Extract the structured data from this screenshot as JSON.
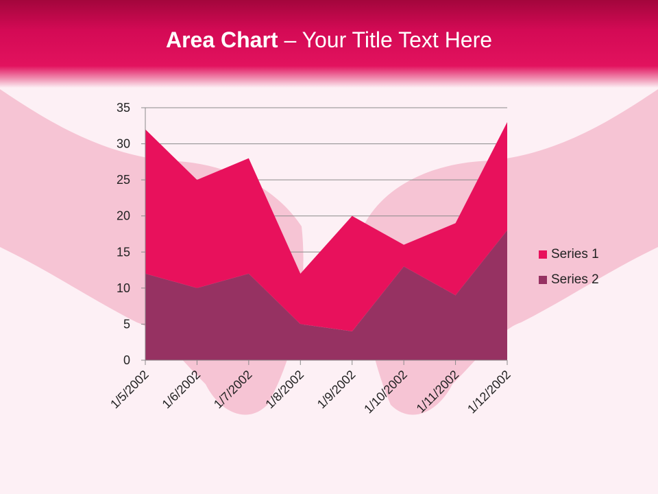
{
  "slide": {
    "title_bold": "Area Chart",
    "title_rest": " – Your Title Text Here"
  },
  "colors": {
    "series1": "#e8115c",
    "series2": "#963262",
    "wing": "#f0a0b8"
  },
  "chart_data": {
    "type": "area",
    "stacked": true,
    "categories": [
      "1/5/2002",
      "1/6/2002",
      "1/7/2002",
      "1/8/2002",
      "1/9/2002",
      "1/10/2002",
      "1/11/2002",
      "1/12/2002"
    ],
    "series": [
      {
        "name": "Series 1",
        "values": [
          20,
          15,
          16,
          7,
          16,
          3,
          10,
          15
        ]
      },
      {
        "name": "Series 2",
        "values": [
          12,
          10,
          12,
          5,
          4,
          13,
          9,
          18
        ]
      }
    ],
    "ylim": [
      0,
      35
    ],
    "yticks": [
      0,
      5,
      10,
      15,
      20,
      25,
      30,
      35
    ],
    "grid": true,
    "legend": "right"
  }
}
